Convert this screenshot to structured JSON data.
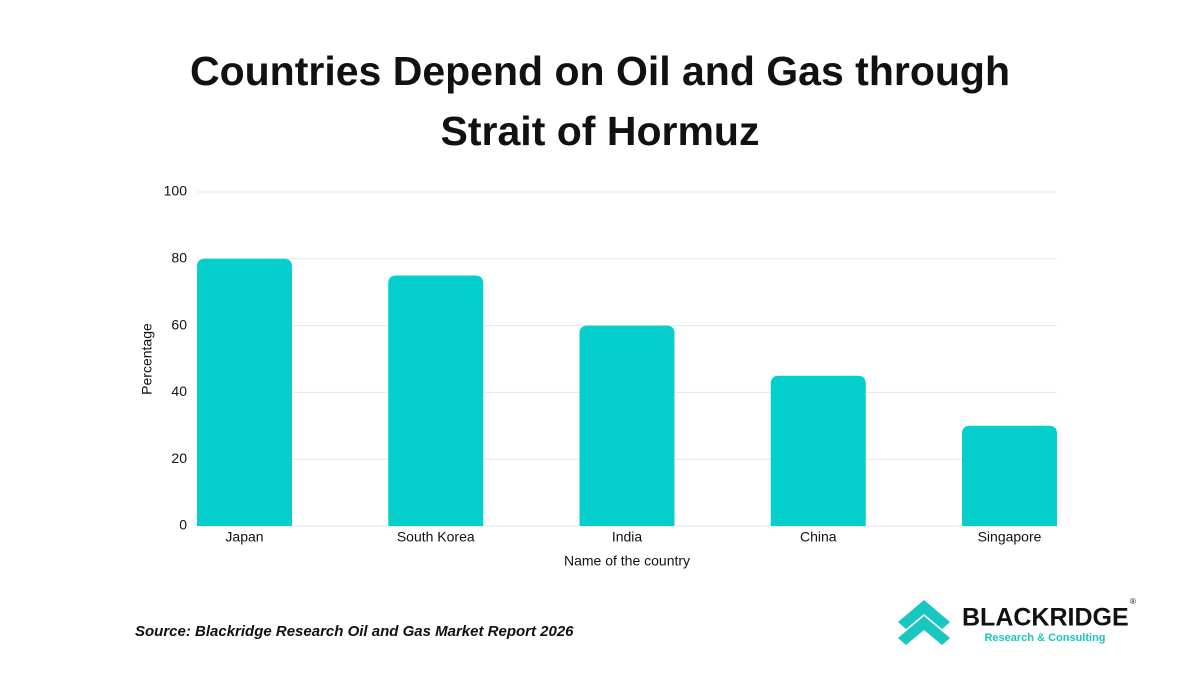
{
  "chart_data": {
    "type": "bar",
    "title_lines": [
      "Countries Depend on Oil and Gas through",
      "Strait of Hormuz"
    ],
    "x_label": "Name of the country",
    "y_label": "Percentage",
    "categories": [
      "Japan",
      "South Korea",
      "India",
      "China",
      "Singapore"
    ],
    "values": [
      80,
      75,
      60,
      45,
      30
    ],
    "color": "#05cfcc",
    "ylim": [
      0,
      100
    ],
    "yticks": [
      0,
      20,
      40,
      60,
      80,
      100
    ],
    "grid": true
  },
  "source": "Source: Blackridge Research Oil and Gas Market Report 2026",
  "logo": {
    "name": "BLACKRIDGE",
    "registered": "®",
    "tagline": "Research & Consulting"
  }
}
